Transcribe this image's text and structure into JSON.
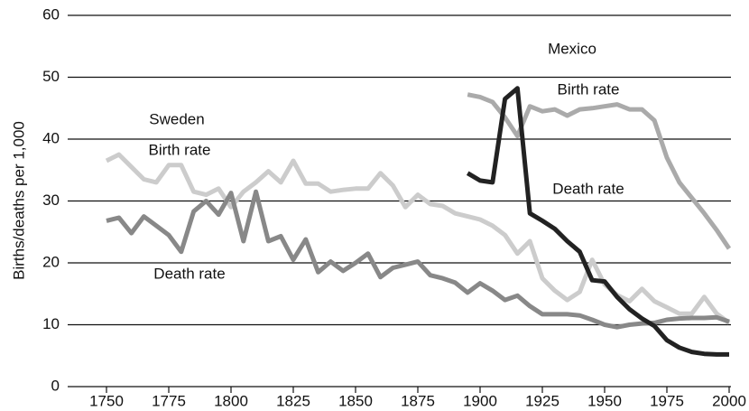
{
  "chart_data": {
    "type": "line",
    "y_label": "Births/deaths per 1,000",
    "xlim": [
      1750,
      2000
    ],
    "xticks": [
      1750,
      1775,
      1800,
      1825,
      1850,
      1875,
      1900,
      1925,
      1950,
      1975,
      2000
    ],
    "ylim": [
      0,
      60
    ],
    "yticks": [
      0,
      10,
      20,
      30,
      40,
      50,
      60
    ],
    "grid": true,
    "annotations": [
      {
        "text": "Mexico"
      },
      {
        "text": "Birth rate"
      },
      {
        "text": "Death rate"
      },
      {
        "text": "Sweden"
      },
      {
        "text": "Birth rate"
      },
      {
        "text": "Death rate"
      }
    ],
    "series": [
      {
        "color": "#cccccc",
        "x": [
          1750,
          1755,
          1760,
          1765,
          1770,
          1775,
          1780,
          1785,
          1790,
          1795,
          1800,
          1805,
          1810,
          1815,
          1820,
          1825,
          1830,
          1835,
          1840,
          1845,
          1850,
          1855,
          1860,
          1865,
          1870,
          1875,
          1880,
          1885,
          1890,
          1895,
          1900,
          1905,
          1910,
          1915,
          1920,
          1925,
          1930,
          1935,
          1940,
          1945,
          1950,
          1955,
          1960,
          1965,
          1970,
          1975,
          1980,
          1985,
          1990,
          1995,
          2000
        ],
        "values": [
          36.5,
          37.5,
          35.5,
          33.5,
          33,
          35.8,
          35.8,
          31.5,
          31,
          32,
          29,
          31.5,
          33,
          34.8,
          33,
          36.5,
          32.8,
          32.8,
          31.5,
          31.8,
          32,
          32,
          34.5,
          32.5,
          29,
          31,
          29.5,
          29.2,
          28,
          27.5,
          27,
          26,
          24.5,
          21.5,
          23.5,
          17.5,
          15.5,
          14,
          15.3,
          20.5,
          16.5,
          14.8,
          13.8,
          15.8,
          13.8,
          12.8,
          11.8,
          11.8,
          14.5,
          11.8,
          10.3
        ]
      },
      {
        "color": "#888888",
        "x": [
          1750,
          1755,
          1760,
          1765,
          1770,
          1775,
          1780,
          1785,
          1790,
          1795,
          1800,
          1805,
          1810,
          1815,
          1820,
          1825,
          1830,
          1835,
          1840,
          1845,
          1850,
          1855,
          1860,
          1865,
          1870,
          1875,
          1880,
          1885,
          1890,
          1895,
          1900,
          1905,
          1910,
          1915,
          1920,
          1925,
          1930,
          1935,
          1940,
          1945,
          1950,
          1955,
          1960,
          1965,
          1970,
          1975,
          1980,
          1985,
          1990,
          1995,
          2000
        ],
        "values": [
          26.8,
          27.3,
          24.8,
          27.5,
          26,
          24.5,
          21.8,
          28.3,
          30,
          27.8,
          31.3,
          23.5,
          31.5,
          23.5,
          24.3,
          20.5,
          23.8,
          18.5,
          20.2,
          18.7,
          20,
          21.5,
          17.7,
          19.2,
          19.7,
          20.2,
          18,
          17.5,
          16.8,
          15.2,
          16.7,
          15.5,
          14,
          14.7,
          13,
          11.7,
          11.7,
          11.7,
          11.5,
          10.8,
          10,
          9.6,
          10,
          10.2,
          10.3,
          10.8,
          11,
          11.1,
          11.1,
          11.2,
          10.5
        ]
      },
      {
        "color": "#aaaaaa",
        "x": [
          1895,
          1900,
          1905,
          1910,
          1915,
          1920,
          1925,
          1930,
          1935,
          1940,
          1945,
          1950,
          1955,
          1960,
          1965,
          1970,
          1975,
          1980,
          1985,
          1990,
          1995,
          2000
        ],
        "values": [
          47.2,
          46.8,
          46,
          43.5,
          40.5,
          45.3,
          44.5,
          44.8,
          43.8,
          44.8,
          45,
          45.3,
          45.6,
          44.8,
          44.8,
          43,
          37,
          33,
          30.5,
          28,
          25.3,
          22.3
        ]
      },
      {
        "color": "#222222",
        "x": [
          1895,
          1900,
          1905,
          1910,
          1915,
          1920,
          1925,
          1930,
          1935,
          1940,
          1945,
          1950,
          1955,
          1960,
          1965,
          1970,
          1975,
          1980,
          1985,
          1990,
          1995,
          2000
        ],
        "values": [
          34.5,
          33.3,
          33,
          46.5,
          48.2,
          28,
          26.8,
          25.5,
          23.5,
          21.8,
          17.2,
          17,
          14.5,
          12.5,
          11,
          9.8,
          7.5,
          6.3,
          5.6,
          5.3,
          5.2,
          5.2
        ]
      }
    ]
  }
}
